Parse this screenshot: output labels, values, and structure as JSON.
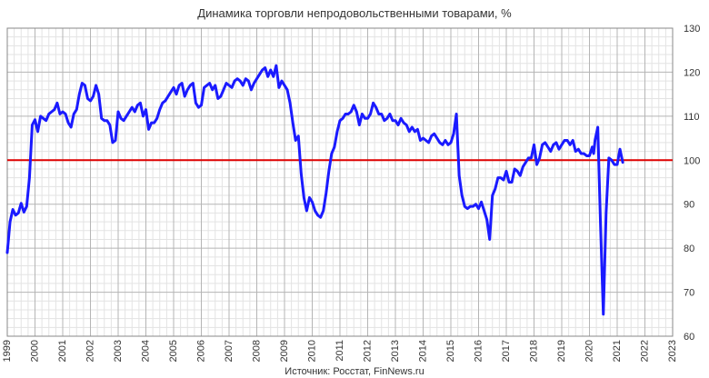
{
  "chart_data": {
    "type": "line",
    "title": "Динамика торговли непродовольственными товарами, %",
    "source": "Источник: Росстат, FinNews.ru",
    "xlabel": "",
    "ylabel": "",
    "xlim": [
      1999,
      2023
    ],
    "ylim": [
      60,
      130
    ],
    "x_ticks": [
      "1999",
      "2000",
      "2001",
      "2002",
      "2003",
      "2004",
      "2005",
      "2006",
      "2007",
      "2008",
      "2009",
      "2010",
      "2011",
      "2012",
      "2013",
      "2014",
      "2015",
      "2016",
      "2017",
      "2018",
      "2019",
      "2020",
      "2021",
      "2022",
      "2023"
    ],
    "y_ticks": [
      "60",
      "70",
      "80",
      "90",
      "100",
      "110",
      "120",
      "130"
    ],
    "y_axis_side": "right",
    "grid": true,
    "reference_line": {
      "y": 100,
      "color": "#dd0000"
    },
    "series_color": "#1a1aff",
    "series": [
      {
        "x": [
          1999.0,
          1999.1,
          1999.2,
          1999.3,
          1999.4,
          1999.5,
          1999.6,
          1999.7,
          1999.8,
          1999.9,
          2000.0,
          2000.1,
          2000.2,
          2000.3,
          2000.4,
          2000.5,
          2000.6,
          2000.7,
          2000.8,
          2000.9,
          2001.0,
          2001.1,
          2001.2,
          2001.3,
          2001.4,
          2001.5,
          2001.6,
          2001.7,
          2001.8,
          2001.9,
          2002.0,
          2002.1,
          2002.2,
          2002.3,
          2002.4,
          2002.5,
          2002.6,
          2002.7,
          2002.8,
          2002.9,
          2003.0,
          2003.1,
          2003.2,
          2003.3,
          2003.4,
          2003.5,
          2003.6,
          2003.7,
          2003.8,
          2003.9,
          2004.0,
          2004.1,
          2004.2,
          2004.3,
          2004.4,
          2004.5,
          2004.6,
          2004.7,
          2004.8,
          2004.9,
          2005.0,
          2005.1,
          2005.2,
          2005.3,
          2005.4,
          2005.5,
          2005.6,
          2005.7,
          2005.8,
          2005.9,
          2006.0,
          2006.1,
          2006.2,
          2006.3,
          2006.4,
          2006.5,
          2006.6,
          2006.7,
          2006.8,
          2006.9,
          2007.0,
          2007.1,
          2007.2,
          2007.3,
          2007.4,
          2007.5,
          2007.6,
          2007.7,
          2007.8,
          2007.9,
          2008.0,
          2008.1,
          2008.2,
          2008.3,
          2008.4,
          2008.5,
          2008.6,
          2008.7,
          2008.8,
          2008.9,
          2009.0,
          2009.1,
          2009.2,
          2009.3,
          2009.4,
          2009.5,
          2009.6,
          2009.7,
          2009.8,
          2009.9,
          2010.0,
          2010.1,
          2010.2,
          2010.3,
          2010.4,
          2010.5,
          2010.6,
          2010.7,
          2010.8,
          2010.9,
          2011.0,
          2011.1,
          2011.2,
          2011.3,
          2011.4,
          2011.5,
          2011.6,
          2011.7,
          2011.8,
          2011.9,
          2012.0,
          2012.1,
          2012.2,
          2012.3,
          2012.4,
          2012.5,
          2012.6,
          2012.7,
          2012.8,
          2012.9,
          2013.0,
          2013.1,
          2013.2,
          2013.3,
          2013.4,
          2013.5,
          2013.6,
          2013.7,
          2013.8,
          2013.9,
          2014.0,
          2014.1,
          2014.2,
          2014.3,
          2014.4,
          2014.5,
          2014.6,
          2014.7,
          2014.8,
          2014.9,
          2015.0,
          2015.1,
          2015.2,
          2015.3,
          2015.4,
          2015.5,
          2015.6,
          2015.7,
          2015.8,
          2015.9,
          2016.0,
          2016.1,
          2016.2,
          2016.3,
          2016.4,
          2016.5,
          2016.6,
          2016.7,
          2016.8,
          2016.9,
          2017.0,
          2017.1,
          2017.2,
          2017.3,
          2017.4,
          2017.5,
          2017.6,
          2017.7,
          2017.8,
          2017.9,
          2018.0,
          2018.1,
          2018.2,
          2018.3,
          2018.4,
          2018.5,
          2018.6,
          2018.7,
          2018.8,
          2018.9,
          2019.0,
          2019.1,
          2019.2,
          2019.3,
          2019.4,
          2019.5,
          2019.6,
          2019.7,
          2019.8,
          2019.9,
          2020.0,
          2020.1,
          2020.15,
          2020.2,
          2020.3,
          2020.4,
          2020.5,
          2020.6,
          2020.7,
          2020.8,
          2020.9,
          2021.0,
          2021.1,
          2021.2
        ],
        "values": [
          79.0,
          86.0,
          88.8,
          87.5,
          88.0,
          90.2,
          88.2,
          89.5,
          96.0,
          108.0,
          109.2,
          106.5,
          110.0,
          109.5,
          109.0,
          110.5,
          111.0,
          111.5,
          113.0,
          110.5,
          111.0,
          110.5,
          108.5,
          107.5,
          110.5,
          111.5,
          115.0,
          117.5,
          117.0,
          114.0,
          113.5,
          114.5,
          117.0,
          115.0,
          109.5,
          109.0,
          109.0,
          108.0,
          104.0,
          104.5,
          111.0,
          109.5,
          109.0,
          110.0,
          111.0,
          112.0,
          111.0,
          112.5,
          113.0,
          110.0,
          111.5,
          107.0,
          108.5,
          108.5,
          109.5,
          111.5,
          113.0,
          113.5,
          114.5,
          115.5,
          116.5,
          115.0,
          117.0,
          117.5,
          114.5,
          116.0,
          117.0,
          117.5,
          113.0,
          112.0,
          112.5,
          116.5,
          117.0,
          117.5,
          116.0,
          117.0,
          114.0,
          114.5,
          116.0,
          117.5,
          117.0,
          116.5,
          118.0,
          118.5,
          118.0,
          117.0,
          118.5,
          118.0,
          116.0,
          117.5,
          118.5,
          119.5,
          120.5,
          121.0,
          119.0,
          120.5,
          119.0,
          121.5,
          116.5,
          118.0,
          117.0,
          116.0,
          113.0,
          108.5,
          104.5,
          105.5,
          97.0,
          91.5,
          88.5,
          91.5,
          90.5,
          88.5,
          87.5,
          87.0,
          88.5,
          92.5,
          97.5,
          101.5,
          103.0,
          106.5,
          109.0,
          109.5,
          110.5,
          110.5,
          111.0,
          112.5,
          111.0,
          108.0,
          110.5,
          109.5,
          109.5,
          110.5,
          113.0,
          112.0,
          110.5,
          110.5,
          109.0,
          109.5,
          110.5,
          109.0,
          109.0,
          108.0,
          109.5,
          108.5,
          108.0,
          106.5,
          107.5,
          106.5,
          107.0,
          104.5,
          105.0,
          104.5,
          104.0,
          105.5,
          106.0,
          105.0,
          104.0,
          103.5,
          104.5,
          103.5,
          104.0,
          106.0,
          110.5,
          96.5,
          92.0,
          89.5,
          89.0,
          89.5,
          89.5,
          90.0,
          89.0,
          90.5,
          88.5,
          86.5,
          82.0,
          92.0,
          93.5,
          96.0,
          96.0,
          95.5,
          97.5,
          95.0,
          95.0,
          98.0,
          97.5,
          96.5,
          98.5,
          99.5,
          100.5,
          100.5,
          103.5,
          99.0,
          100.5,
          103.5,
          104.0,
          103.0,
          102.0,
          103.5,
          104.0,
          102.5,
          103.5,
          104.5,
          104.5,
          103.5,
          104.5,
          102.0,
          102.5,
          101.5,
          101.5,
          101.0,
          101.0,
          103.0,
          101.5,
          104.5,
          107.5,
          85.0,
          65.0,
          88.0,
          100.5,
          100.0,
          99.0,
          99.0,
          102.5,
          99.5
        ]
      }
    ]
  }
}
